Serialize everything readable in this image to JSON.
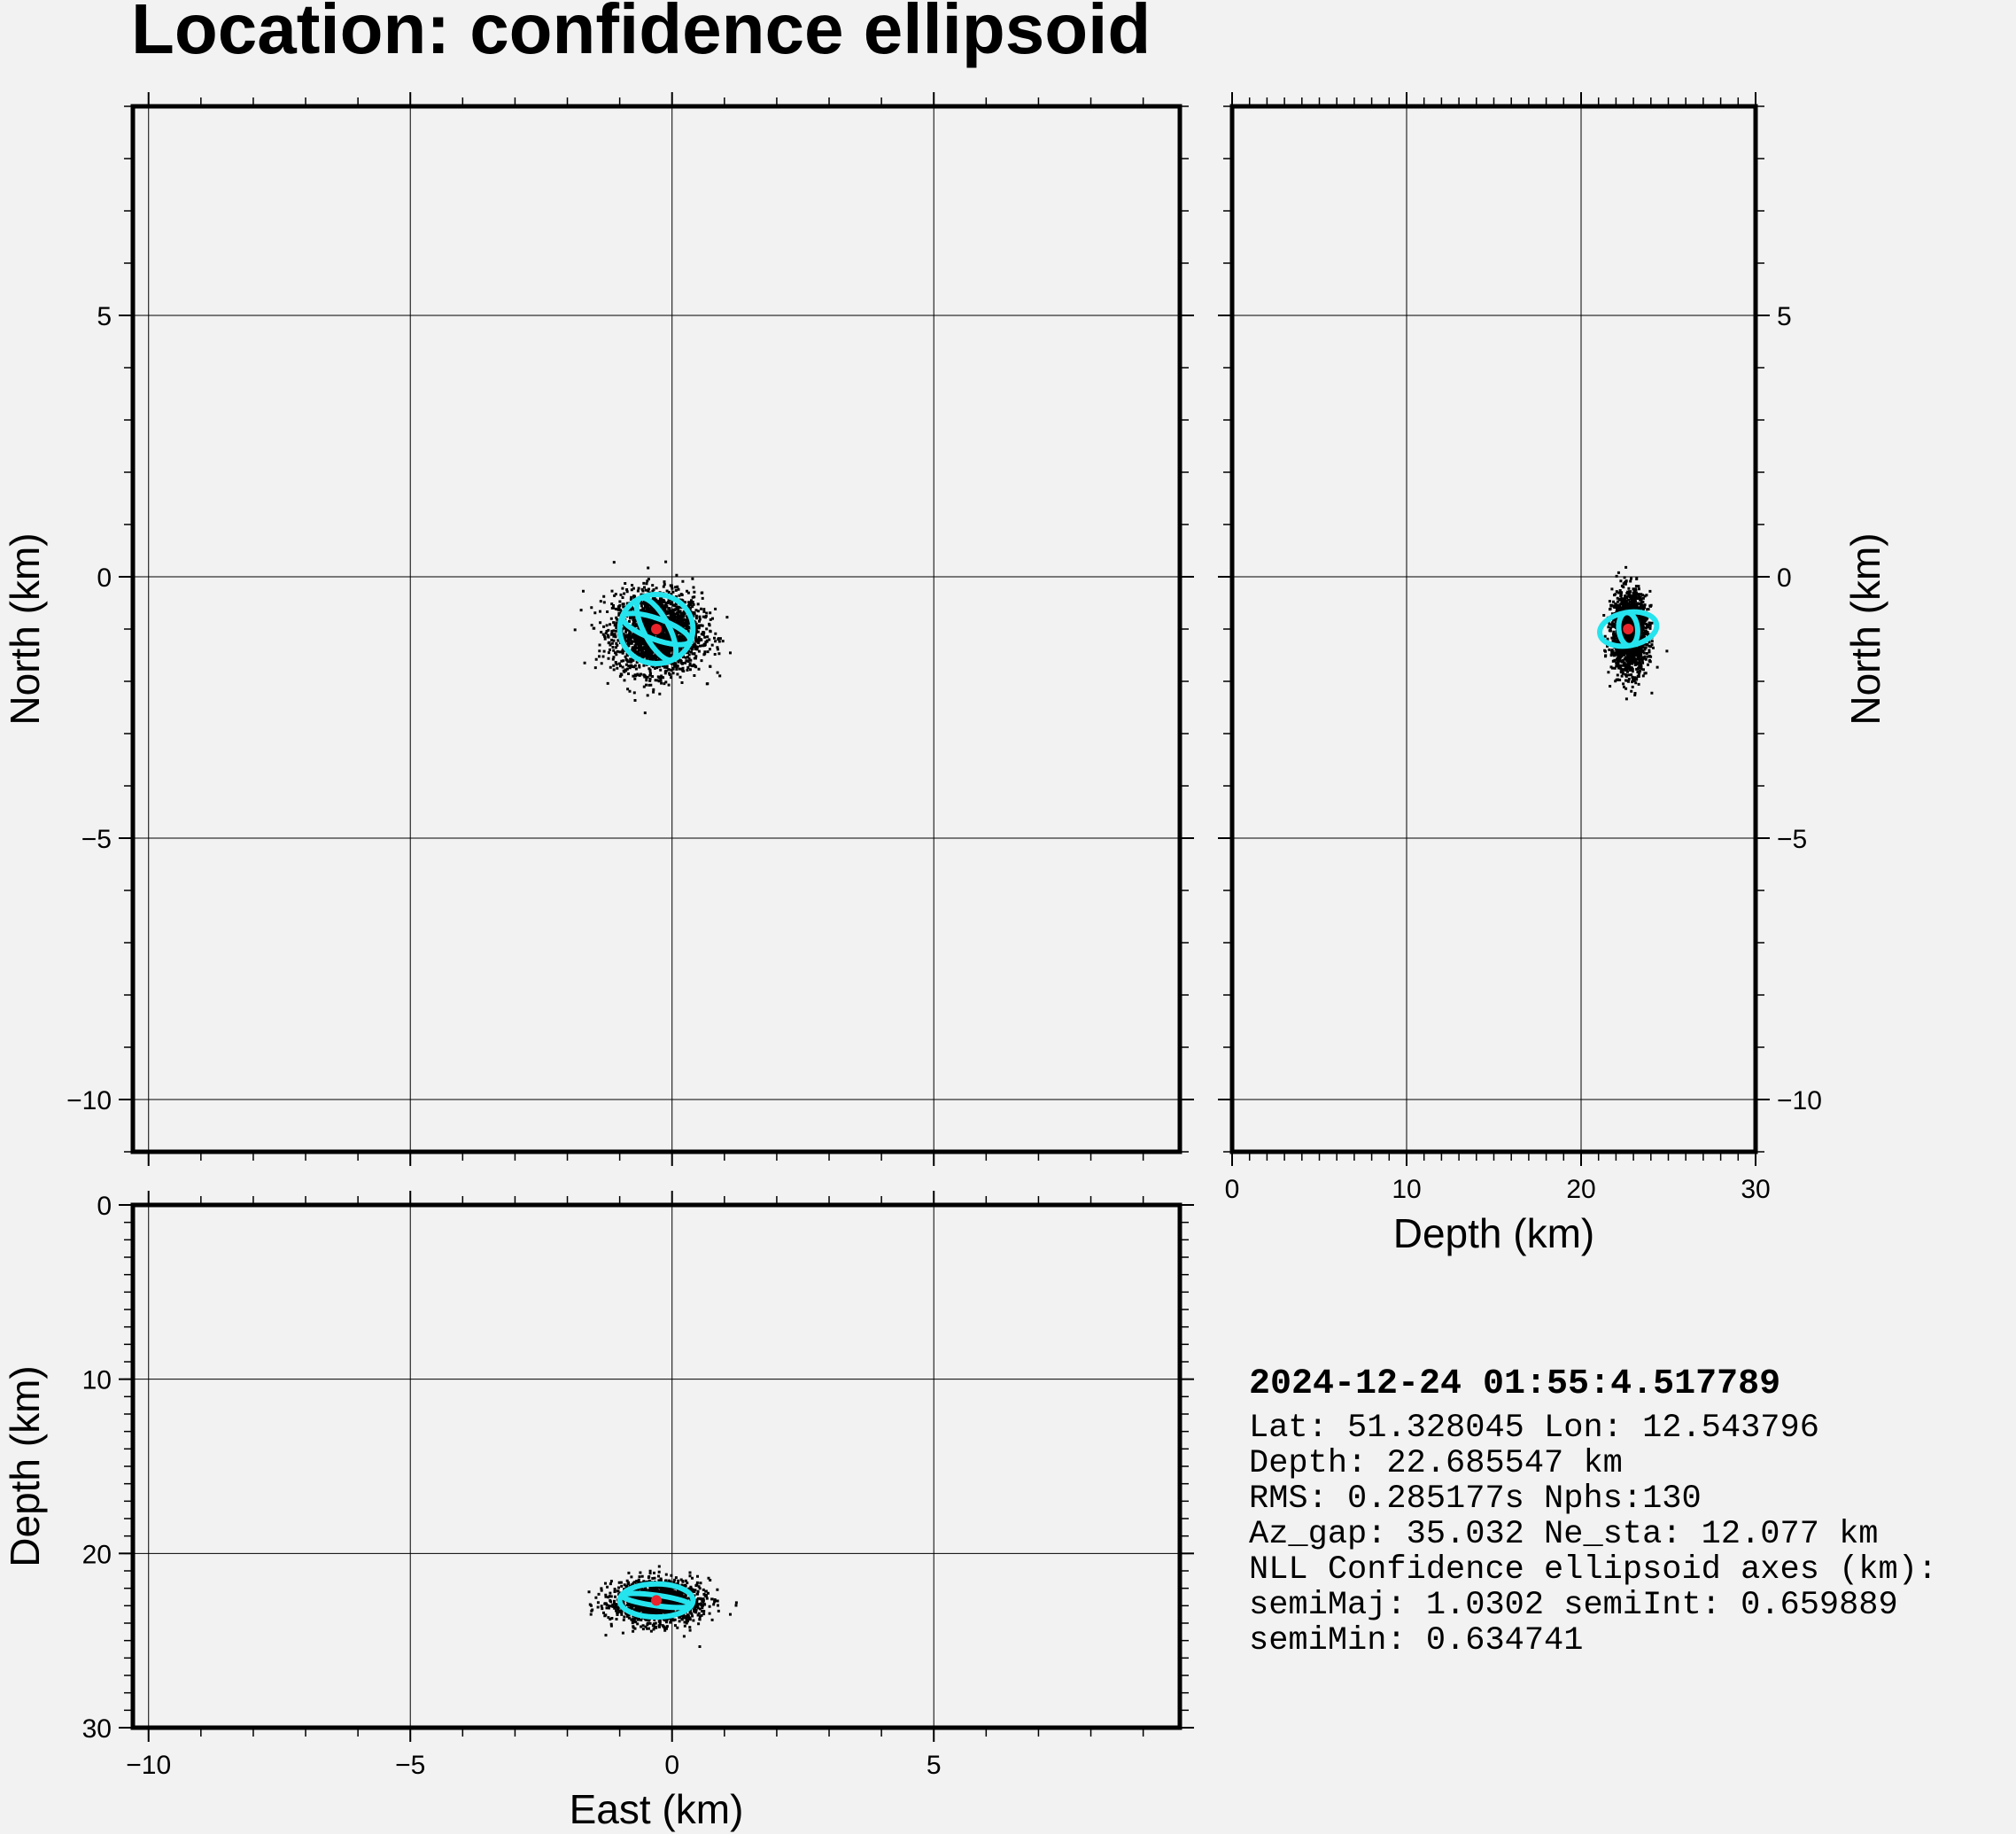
{
  "title": "Location: confidence ellipsoid",
  "colors": {
    "background": "#f2f2f2",
    "frame": "#000000",
    "grid": "#000000",
    "scatter": "#000000",
    "ellipse": "#25e4ee",
    "hypocenter": "#e8242a"
  },
  "chart_data": [
    {
      "panel": "map-view",
      "type": "scatter",
      "xlabel": "East (km)",
      "ylabel": "North (km)",
      "xlim": [
        -10.3,
        9.7
      ],
      "ylim": [
        -11.0,
        9.0
      ],
      "xticks": [
        -10,
        -5,
        0,
        5
      ],
      "yticks": [
        -10,
        -5,
        0,
        5
      ],
      "xtick_labels": [
        "",
        "",
        "",
        ""
      ],
      "ytick_labels": [
        "−10",
        "−5",
        "0",
        "5"
      ],
      "grid": true,
      "hypocenter": {
        "x": -0.3,
        "y": -1.0
      },
      "cloud": {
        "cx": -0.3,
        "cy": -1.05,
        "sx": 0.42,
        "sy": 0.38,
        "n": 2500
      },
      "ellipses": [
        {
          "cx": -0.3,
          "cy": -1.0,
          "rx": 0.7,
          "ry": 0.66,
          "rot": 0
        },
        {
          "cx": -0.3,
          "cy": -1.0,
          "rx": 0.68,
          "ry": 0.2,
          "rot": 20
        },
        {
          "cx": -0.3,
          "cy": -1.0,
          "rx": 0.66,
          "ry": 0.24,
          "rot": 62
        }
      ]
    },
    {
      "panel": "depth-north",
      "type": "scatter",
      "xlabel": "Depth (km)",
      "ylabel": "North (km)",
      "xlim": [
        0,
        30
      ],
      "ylim": [
        -11.0,
        9.0
      ],
      "xticks": [
        0,
        10,
        20,
        30
      ],
      "yticks": [
        -10,
        -5,
        0,
        5
      ],
      "xtick_labels": [
        "0",
        "10",
        "20",
        "30"
      ],
      "ytick_labels": [
        "−10",
        "−5",
        "0",
        "5"
      ],
      "grid": true,
      "hypocenter": {
        "x": 22.7,
        "y": -1.0
      },
      "cloud": {
        "cx": 22.7,
        "cy": -1.05,
        "sx": 0.5,
        "sy": 0.38,
        "n": 1800
      },
      "ellipses": [
        {
          "cx": 22.7,
          "cy": -1.0,
          "rx": 0.95,
          "ry": 0.55,
          "rot": 80
        },
        {
          "cx": 22.7,
          "cy": -1.0,
          "rx": 0.95,
          "ry": 0.18,
          "rot": 84
        }
      ]
    },
    {
      "panel": "east-depth",
      "type": "scatter",
      "xlabel": "East (km)",
      "ylabel": "Depth (km)",
      "xlim": [
        -10.3,
        9.7
      ],
      "ylim": [
        30,
        0
      ],
      "xticks": [
        -10,
        -5,
        0,
        5
      ],
      "yticks": [
        0,
        10,
        20,
        30
      ],
      "xtick_labels": [
        "−10",
        "−5",
        "0",
        "5"
      ],
      "ytick_labels": [
        "0",
        "10",
        "20",
        "30"
      ],
      "grid": true,
      "hypocenter": {
        "x": -0.3,
        "y": 22.7
      },
      "cloud": {
        "cx": -0.3,
        "cy": 22.7,
        "sx": 0.42,
        "sy": 0.6,
        "n": 1800
      },
      "ellipses": [
        {
          "cx": -0.3,
          "cy": 22.7,
          "rx": 0.7,
          "ry": 0.95,
          "rot": 0
        },
        {
          "cx": -0.3,
          "cy": 22.7,
          "rx": 0.66,
          "ry": 0.3,
          "rot": 8
        }
      ]
    }
  ],
  "info": {
    "datetime": "2024-12-24 01:55:4.517789",
    "lines": [
      "Lat: 51.328045  Lon: 12.543796",
      "Depth: 22.685547 km",
      "RMS: 0.285177s Nphs:130",
      "Az_gap: 35.032 Ne_sta: 12.077 km",
      "NLL Confidence ellipsoid axes (km):",
      "semiMaj: 1.0302 semiInt: 0.659889",
      "semiMin: 0.634741"
    ]
  }
}
